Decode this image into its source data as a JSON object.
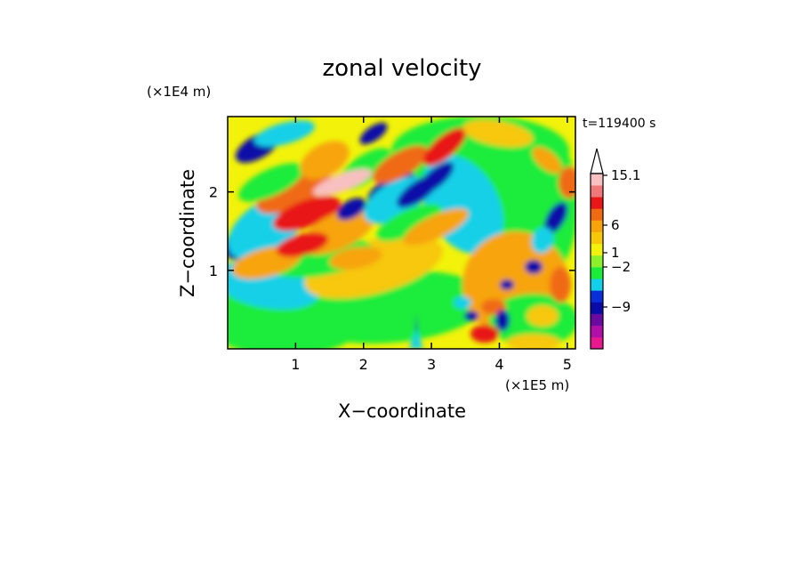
{
  "chart_data": {
    "type": "heatmap",
    "title": "zonal velocity",
    "xlabel": "X−coordinate",
    "ylabel": "Z−coordinate",
    "x_multiplier": "(×1E5 m)",
    "y_multiplier": "(×1E4 m)",
    "time_label": "t=119400 s",
    "xlim": [
      0,
      5.12
    ],
    "ylim": [
      0,
      2.96
    ],
    "x_ticks": [
      "1",
      "2",
      "3",
      "4",
      "5"
    ],
    "x_tick_values": [
      1,
      2,
      3,
      4,
      5
    ],
    "y_ticks": [
      "1",
      "2"
    ],
    "y_tick_values": [
      1,
      2
    ],
    "colorbar": {
      "labels": [
        "15.1",
        "6",
        "1",
        "−2",
        "−9"
      ],
      "label_values": [
        15.1,
        6,
        1,
        -2,
        -9
      ],
      "colors": [
        "#e8188f",
        "#b010a8",
        "#6a0aa0",
        "#0a0aa8",
        "#0a2fd8",
        "#12d0e8",
        "#1aec3a",
        "#8cf02a",
        "#f2f20a",
        "#f7c80a",
        "#f7a40a",
        "#f06a12",
        "#e81818",
        "#f07878",
        "#f8c0c0"
      ],
      "extend_max": true
    }
  }
}
